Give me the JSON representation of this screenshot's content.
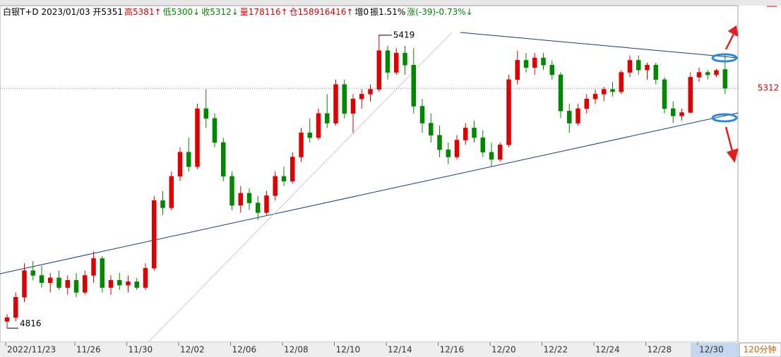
{
  "chart_data": {
    "type": "candlestick",
    "header": [
      {
        "text": "白银T+D 2023/01/03 开5351",
        "color": "#000000"
      },
      {
        "text": "高5381↑",
        "color": "#e00000"
      },
      {
        "text": "低5300↓",
        "color": "#008800"
      },
      {
        "text": "收5312↓",
        "color": "#008800"
      },
      {
        "text": "量178116↑",
        "color": "#e00000"
      },
      {
        "text": "仓158916416↑",
        "color": "#e00000"
      },
      {
        "text": "增0",
        "color": "#000000"
      },
      {
        "text": "振1.51%",
        "color": "#000000"
      },
      {
        "text": "涨(-39)-0.73%↓",
        "color": "#008800"
      }
    ],
    "period": "120分钟",
    "up_color": "#e00000",
    "down_color": "#008800",
    "ylim": [
      4787,
      5483
    ],
    "categories": [
      "2022/11/23",
      null,
      null,
      null,
      null,
      null,
      null,
      null,
      "11/26",
      null,
      null,
      null,
      null,
      null,
      "11/30",
      null,
      null,
      null,
      null,
      null,
      "12/02",
      null,
      null,
      null,
      null,
      null,
      "12/06",
      null,
      null,
      null,
      null,
      null,
      "12/08",
      null,
      null,
      null,
      null,
      null,
      "12/10",
      null,
      null,
      null,
      null,
      null,
      "12/14",
      null,
      null,
      null,
      null,
      null,
      "12/16",
      null,
      null,
      null,
      null,
      null,
      "12/20",
      null,
      null,
      null,
      null,
      null,
      "12/22",
      null,
      null,
      null,
      null,
      null,
      "12/24",
      null,
      null,
      null,
      null,
      null,
      "12/28",
      null,
      null,
      null,
      null,
      null,
      "12/30",
      null,
      null,
      null
    ],
    "open": [
      4830,
      4838,
      4880,
      4935,
      4925,
      4910,
      4920,
      4900,
      4915,
      4890,
      4925,
      4960,
      4900,
      4915,
      4905,
      4912,
      4900,
      4940,
      5080,
      5065,
      5130,
      5180,
      5150,
      5270,
      5250,
      5200,
      5130,
      5070,
      5095,
      5075,
      5055,
      5090,
      5130,
      5120,
      5170,
      5220,
      5210,
      5260,
      5240,
      5320,
      5260,
      5290,
      5300,
      5310,
      5390,
      5345,
      5385,
      5360,
      5275,
      5240,
      5215,
      5185,
      5170,
      5205,
      5230,
      5210,
      5180,
      5165,
      5195,
      5330,
      5370,
      5355,
      5375,
      5360,
      5340,
      5265,
      5240,
      5270,
      5290,
      5300,
      5310,
      5305,
      5345,
      5370,
      5350,
      5360,
      5330,
      5270,
      5255,
      5262,
      5335,
      5345,
      5340,
      5351
    ],
    "high": [
      4845,
      4890,
      4950,
      4955,
      4945,
      4930,
      4935,
      4925,
      4930,
      4935,
      4975,
      4965,
      4925,
      4930,
      4925,
      4920,
      4950,
      5090,
      5100,
      5140,
      5190,
      5210,
      5280,
      5310,
      5260,
      5210,
      5140,
      5110,
      5105,
      5090,
      5100,
      5140,
      5150,
      5180,
      5230,
      5250,
      5270,
      5300,
      5330,
      5330,
      5300,
      5310,
      5320,
      5419,
      5400,
      5395,
      5400,
      5395,
      5290,
      5260,
      5235,
      5200,
      5215,
      5240,
      5245,
      5225,
      5200,
      5200,
      5340,
      5390,
      5385,
      5385,
      5385,
      5370,
      5345,
      5280,
      5280,
      5300,
      5310,
      5315,
      5325,
      5350,
      5380,
      5380,
      5365,
      5365,
      5335,
      5285,
      5270,
      5345,
      5355,
      5350,
      5352,
      5381
    ],
    "low": [
      4816,
      4830,
      4870,
      4915,
      4900,
      4890,
      4895,
      4885,
      4880,
      4885,
      4910,
      4890,
      4885,
      4895,
      4890,
      4895,
      4895,
      4935,
      5050,
      5060,
      5120,
      5140,
      5145,
      5230,
      5190,
      5120,
      5060,
      5055,
      5060,
      5040,
      5050,
      5080,
      5110,
      5115,
      5160,
      5200,
      5205,
      5230,
      5235,
      5250,
      5220,
      5270,
      5285,
      5305,
      5330,
      5340,
      5340,
      5260,
      5220,
      5200,
      5170,
      5155,
      5165,
      5195,
      5200,
      5170,
      5150,
      5160,
      5190,
      5320,
      5345,
      5340,
      5350,
      5330,
      5250,
      5220,
      5235,
      5260,
      5280,
      5285,
      5295,
      5300,
      5335,
      5340,
      5330,
      5320,
      5260,
      5240,
      5245,
      5260,
      5325,
      5330,
      5335,
      5300
    ],
    "close": [
      4838,
      4880,
      4935,
      4925,
      4910,
      4920,
      4900,
      4915,
      4890,
      4925,
      4960,
      4900,
      4915,
      4905,
      4912,
      4900,
      4940,
      5080,
      5065,
      5130,
      5180,
      5150,
      5270,
      5250,
      5200,
      5130,
      5070,
      5095,
      5075,
      5055,
      5090,
      5130,
      5120,
      5170,
      5220,
      5210,
      5260,
      5240,
      5320,
      5260,
      5290,
      5300,
      5310,
      5390,
      5345,
      5385,
      5360,
      5275,
      5240,
      5215,
      5185,
      5170,
      5205,
      5230,
      5210,
      5180,
      5165,
      5195,
      5330,
      5370,
      5355,
      5375,
      5360,
      5340,
      5265,
      5240,
      5270,
      5290,
      5300,
      5310,
      5305,
      5345,
      5370,
      5350,
      5360,
      5330,
      5270,
      5255,
      5262,
      5335,
      5345,
      5340,
      5349,
      5312
    ]
  }
}
